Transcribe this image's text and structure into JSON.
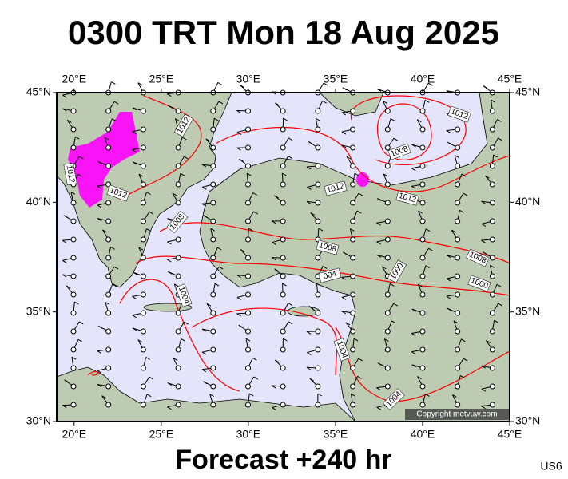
{
  "header": {
    "title": "0300 TRT Mon 18 Aug 2025"
  },
  "map": {
    "lon_range": [
      19,
      45
    ],
    "lat_range": [
      30,
      45
    ],
    "lon_ticks": [
      {
        "value": 20,
        "label": "20°E"
      },
      {
        "value": 25,
        "label": "25°E"
      },
      {
        "value": 30,
        "label": "30°E"
      },
      {
        "value": 35,
        "label": "35°E"
      },
      {
        "value": 40,
        "label": "40°E"
      },
      {
        "value": 45,
        "label": "45°E"
      }
    ],
    "lat_ticks": [
      {
        "value": 30,
        "label": "30°N"
      },
      {
        "value": 35,
        "label": "35°N"
      },
      {
        "value": 40,
        "label": "40°N"
      },
      {
        "value": 45,
        "label": "45°N"
      }
    ]
  },
  "isobar_labels": [
    "1012",
    "1012",
    "1008",
    "1012",
    "1012",
    "1012",
    "1012",
    "1008",
    "1008",
    "004",
    "1000",
    "1008",
    "1000",
    "1004",
    "1004",
    "1004"
  ],
  "copyright": "Copyright metvuw.com",
  "footer": {
    "forecast": "Forecast +240 hr",
    "code": "US6"
  }
}
